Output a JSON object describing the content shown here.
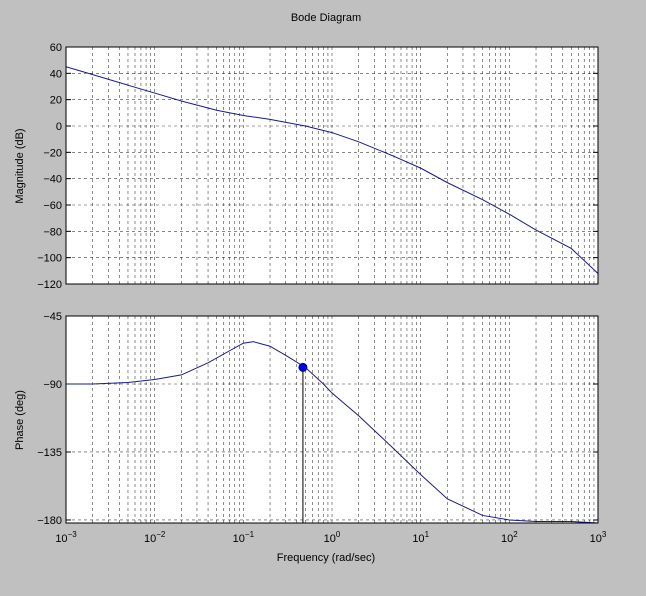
{
  "figure": {
    "title": "Bode Diagram",
    "xlabel": "Frequency  (rad/sec)",
    "background": "#c0c0c0",
    "curve_color": "#1a1a8c",
    "marker_color": "#0000ff"
  },
  "chart_data": [
    {
      "type": "line",
      "name": "magnitude",
      "ylabel": "Magnitude (dB)",
      "xscale": "log",
      "xlim": [
        0.001,
        1000
      ],
      "ylim": [
        -120,
        60
      ],
      "yticks": [
        60,
        40,
        20,
        0,
        -20,
        -40,
        -60,
        -80,
        -100,
        -120
      ],
      "ytick_labels": [
        "60",
        "40",
        "20",
        "0",
        "−20",
        "−40",
        "−60",
        "−80",
        "−100",
        "−120"
      ],
      "grid": true,
      "series": [
        {
          "x": [
            0.001,
            0.002,
            0.005,
            0.01,
            0.02,
            0.05,
            0.1,
            0.2,
            0.5,
            1,
            2,
            5,
            10,
            20,
            50,
            100,
            200,
            500,
            1000
          ],
          "y": [
            45,
            39,
            31,
            25,
            19,
            12,
            8,
            5,
            0,
            -5,
            -12,
            -23,
            -32,
            -43,
            -56,
            -67,
            -79,
            -93,
            -112
          ]
        }
      ]
    },
    {
      "type": "line",
      "name": "phase",
      "ylabel": "Phase (deg)",
      "xscale": "log",
      "xlim": [
        0.001,
        1000
      ],
      "ylim": [
        -182,
        -45
      ],
      "yticks": [
        -45,
        -90,
        -135,
        -180
      ],
      "ytick_labels": [
        "−45",
        "−90",
        "−135",
        "−180"
      ],
      "grid": true,
      "series": [
        {
          "x": [
            0.001,
            0.002,
            0.005,
            0.01,
            0.02,
            0.04,
            0.07,
            0.1,
            0.13,
            0.2,
            0.3,
            0.5,
            0.8,
            1,
            2,
            5,
            10,
            20,
            50,
            100,
            200,
            500,
            1000
          ],
          "y": [
            -90,
            -90,
            -89,
            -87,
            -84,
            -76,
            -68,
            -63,
            -62,
            -65,
            -71,
            -79,
            -90,
            -96,
            -111,
            -133,
            -150,
            -166,
            -177,
            -180,
            -181,
            -181,
            -182
          ]
        }
      ],
      "marker": {
        "x": 0.47,
        "y": -79
      }
    }
  ],
  "xaxis": {
    "tick_bases": [
      "10",
      "10",
      "10",
      "10",
      "10",
      "10",
      "10"
    ],
    "tick_exponents": [
      "−3",
      "−2",
      "−1",
      "0",
      "1",
      "2",
      "3"
    ],
    "tick_values": [
      0.001,
      0.01,
      0.1,
      1,
      10,
      100,
      1000
    ]
  }
}
